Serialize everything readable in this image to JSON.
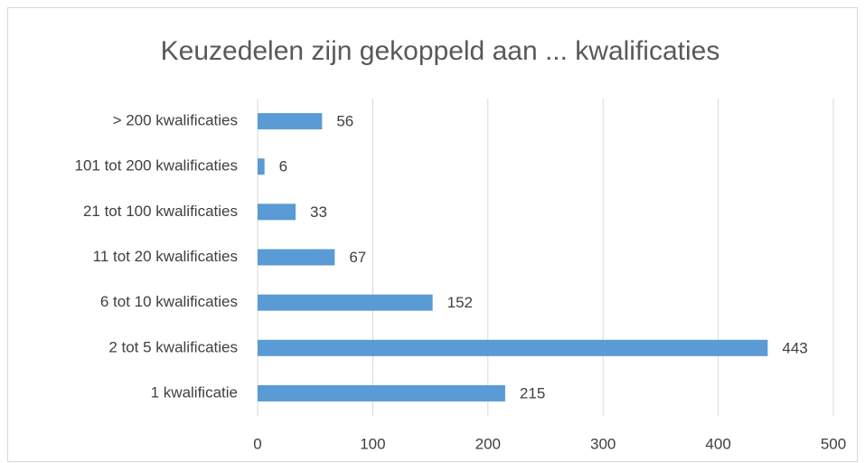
{
  "chart_data": {
    "type": "bar",
    "orientation": "horizontal",
    "title": "Keuzedelen zijn gekoppeld aan ... kwalificaties",
    "categories": [
      "> 200 kwalificaties",
      "101 tot 200 kwalificaties",
      "21 tot 100 kwalificaties",
      "11 tot 20 kwalificaties",
      "6 tot 10 kwalificaties",
      "2 tot 5 kwalificaties",
      "1 kwalificatie"
    ],
    "values": [
      56,
      6,
      33,
      67,
      152,
      443,
      215
    ],
    "color": "#5b9bd5",
    "xlim": [
      0,
      500
    ],
    "xticks": [
      0,
      100,
      200,
      300,
      400,
      500
    ],
    "grid": true
  }
}
